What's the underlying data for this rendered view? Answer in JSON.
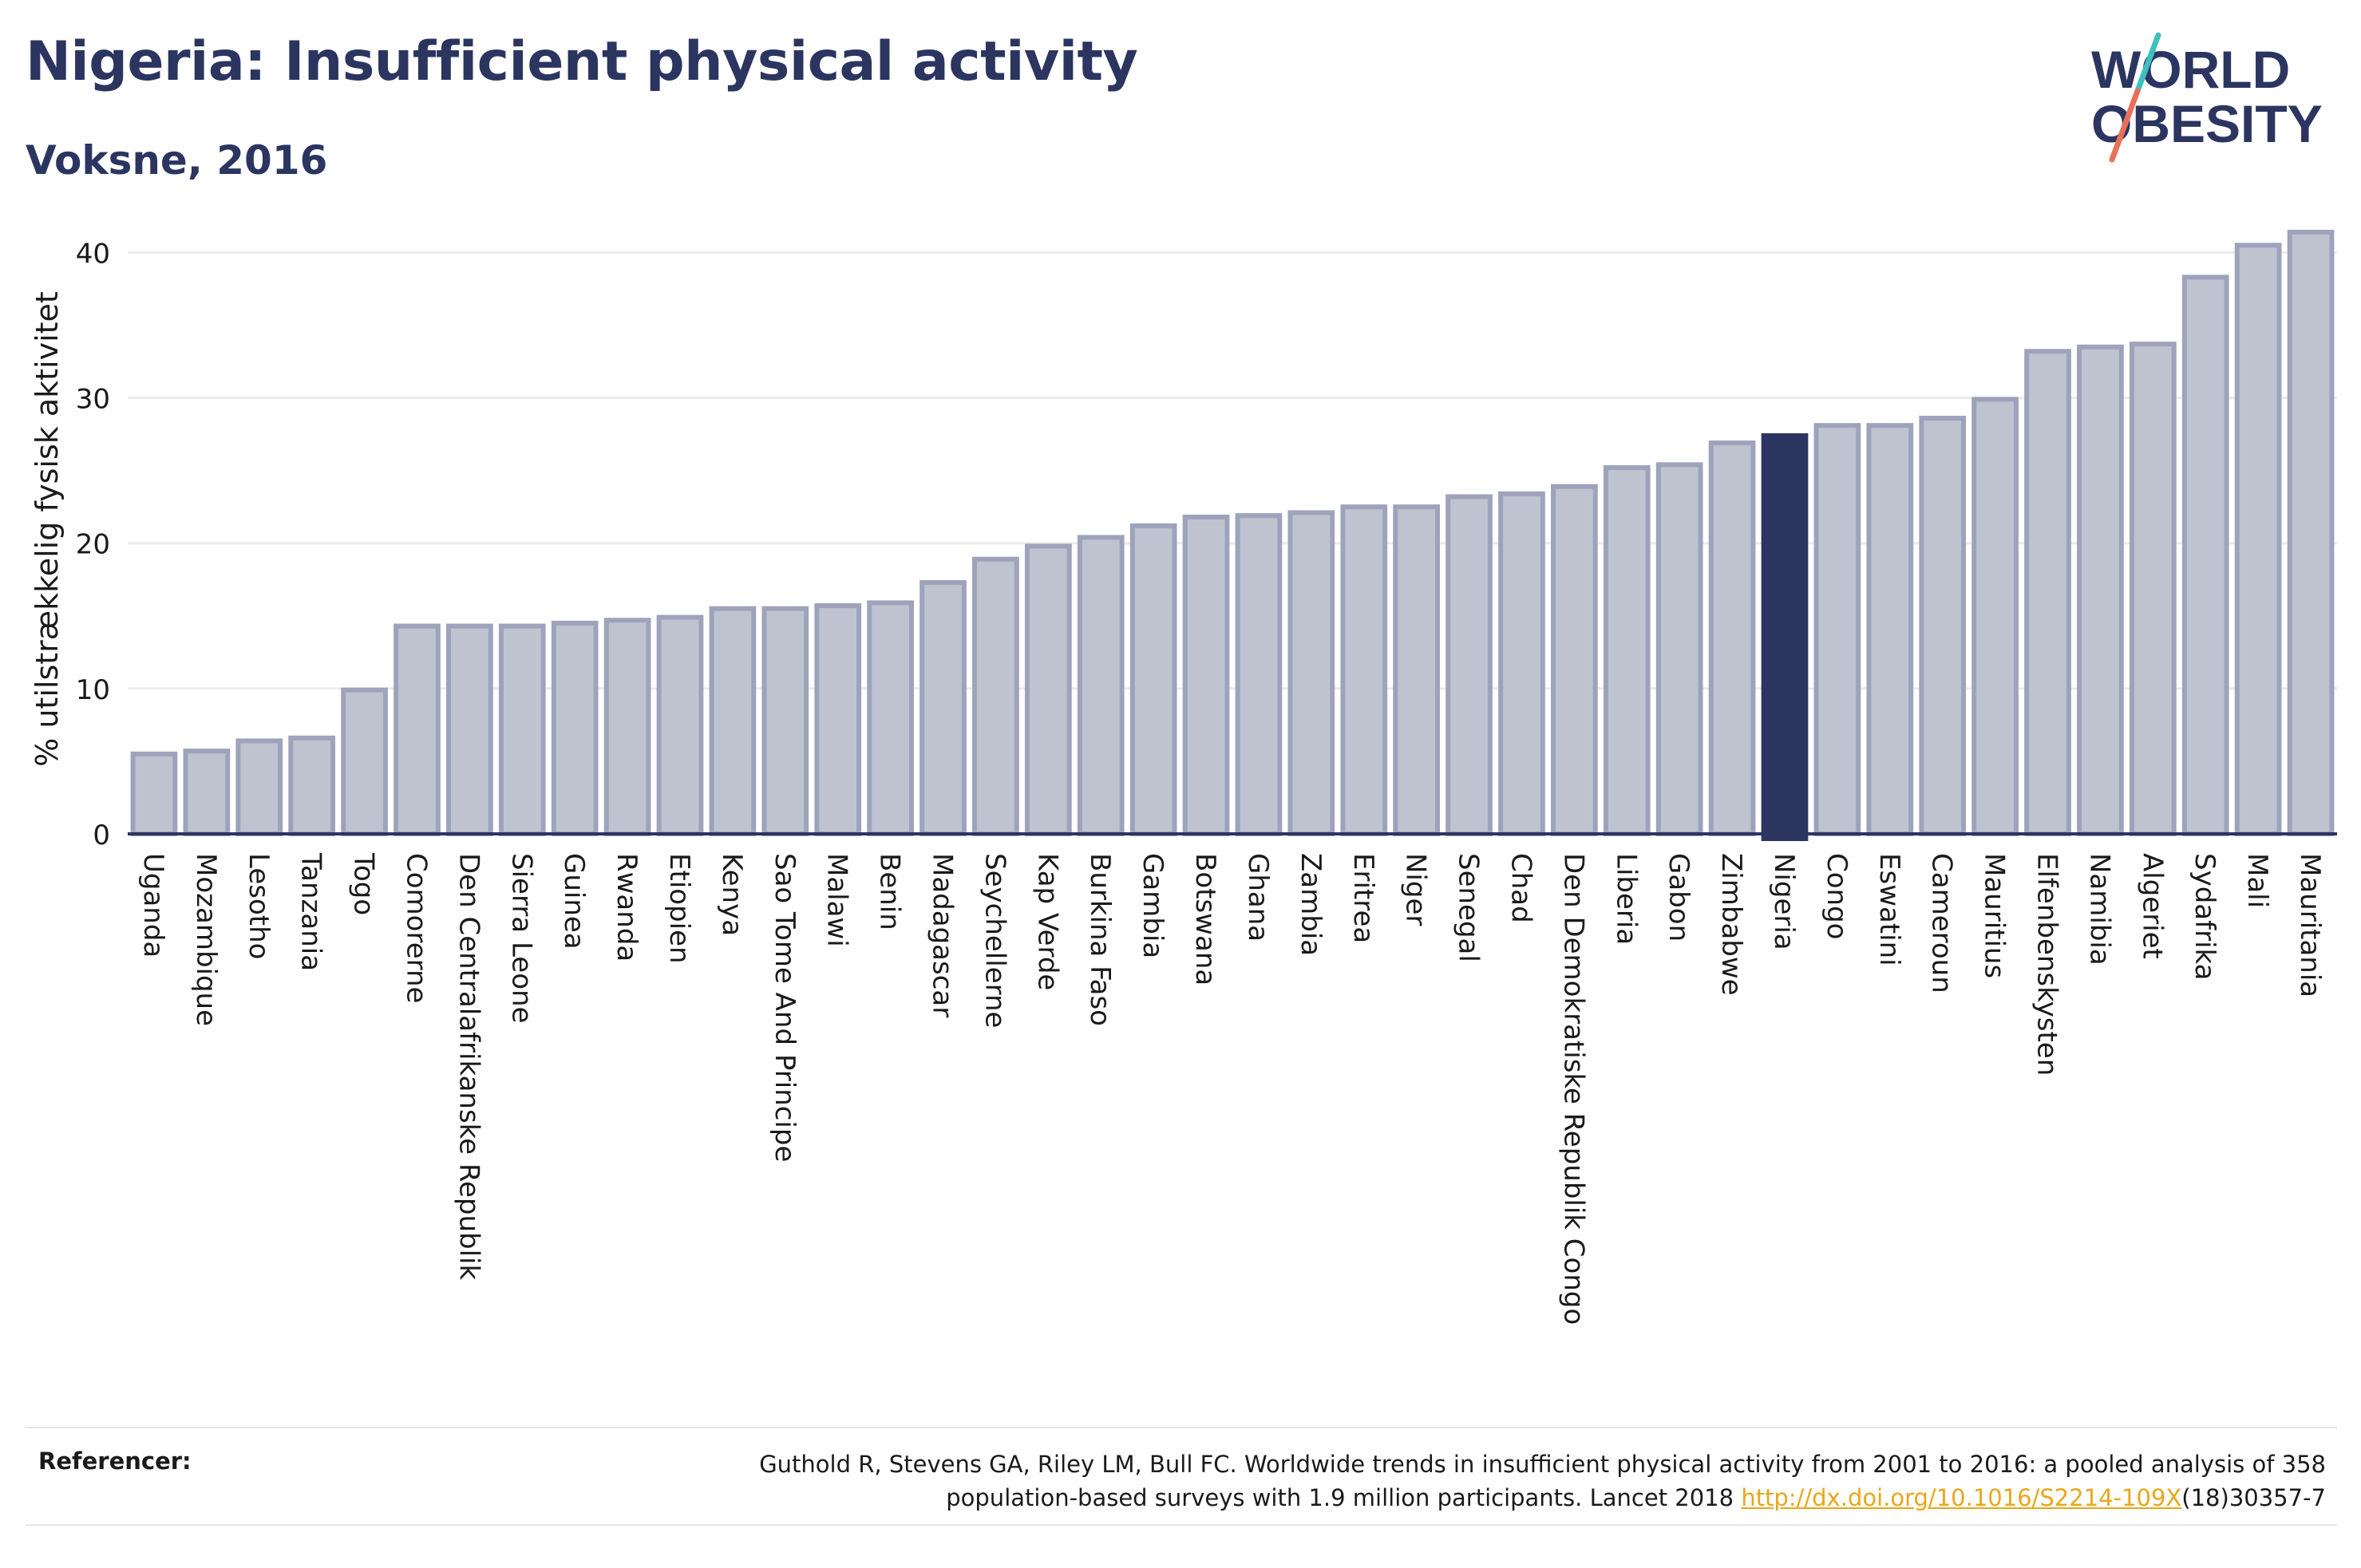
{
  "header": {
    "title": "Nigeria: Insufficient physical activity",
    "subtitle": "Voksne, 2016"
  },
  "logo": {
    "line1": "WORLD",
    "line2": "OBESITY",
    "colors": {
      "text": "#2b3560",
      "slash_teal": "#3fbfbf",
      "slash_coral": "#e8705a"
    }
  },
  "references": {
    "label": "Referencer:",
    "text_line1": "Guthold R, Stevens GA, Riley LM, Bull FC. Worldwide trends in insufficient physical activity from 2001 to 2016: a pooled analysis of 358",
    "text_line2_prefix": "population-based surveys with 1.9 million participants. Lancet 2018 ",
    "link_text": "http://dx.doi.org/10.1016/S2214-109X",
    "text_line2_suffix": "(18)30357-7"
  },
  "colors": {
    "bar_default_fill": "#bfc3d0",
    "bar_default_stroke": "#9ea3bb",
    "bar_highlight": "#2b3560",
    "axis": "#2b3560",
    "grid": "#ececec"
  },
  "chart_data": {
    "type": "bar",
    "ylabel": "% utilstrækkelig fysisk aktivitet",
    "xlabel": "",
    "ylim": [
      0,
      42
    ],
    "yticks": [
      0,
      10,
      20,
      30,
      40
    ],
    "grid": true,
    "highlight": "Nigeria",
    "categories": [
      "Uganda",
      "Mozambique",
      "Lesotho",
      "Tanzania",
      "Togo",
      "Comorerne",
      "Den Centralafrikanske Republik",
      "Sierra Leone",
      "Guinea",
      "Rwanda",
      "Etiopien",
      "Kenya",
      "Sao Tome And Principe",
      "Malawi",
      "Benin",
      "Madagascar",
      "Seychellerne",
      "Kap Verde",
      "Burkina Faso",
      "Gambia",
      "Botswana",
      "Ghana",
      "Zambia",
      "Eritrea",
      "Niger",
      "Senegal",
      "Chad",
      "Den Demokratiske Republik Congo",
      "Liberia",
      "Gabon",
      "Zimbabwe",
      "Nigeria",
      "Congo",
      "Eswatini",
      "Cameroun",
      "Mauritius",
      "Elfenbenskysten",
      "Namibia",
      "Algeriet",
      "Sydafrika",
      "Mali",
      "Mauritania"
    ],
    "values": [
      5.5,
      5.7,
      6.4,
      6.6,
      9.9,
      14.3,
      14.3,
      14.3,
      14.5,
      14.7,
      14.9,
      15.5,
      15.5,
      15.7,
      15.9,
      17.3,
      18.9,
      19.8,
      20.4,
      21.2,
      21.8,
      21.9,
      22.1,
      22.5,
      22.5,
      23.2,
      23.4,
      23.9,
      25.2,
      25.4,
      26.9,
      27.4,
      28.1,
      28.1,
      28.6,
      29.9,
      33.2,
      33.5,
      33.7,
      38.3,
      40.5,
      41.4
    ]
  }
}
